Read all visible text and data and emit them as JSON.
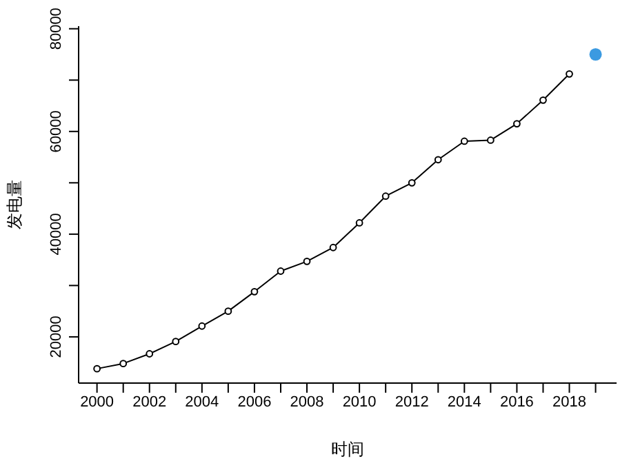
{
  "chart_data": {
    "type": "line",
    "xlabel": "时间",
    "ylabel": "发电量",
    "x": [
      2000,
      2001,
      2002,
      2003,
      2004,
      2005,
      2006,
      2007,
      2008,
      2009,
      2010,
      2011,
      2012,
      2013,
      2014,
      2015,
      2016,
      2017,
      2018
    ],
    "series": [
      {
        "color": "#000000",
        "marker": "circle",
        "values": [
          13800,
          14800,
          16700,
          19100,
          22100,
          25000,
          28800,
          32800,
          34700,
          37400,
          42200,
          47400,
          50000,
          54500,
          58100,
          58300,
          61500,
          66100,
          71200
        ]
      },
      {
        "type": "scatter",
        "color": "#3b9ae1",
        "x": [
          2019
        ],
        "values": [
          75000
        ]
      }
    ],
    "xlim": [
      1999.3,
      2019.8
    ],
    "xticks": [
      2000,
      {
        "value": 2001,
        "label": null
      },
      2002,
      {
        "value": 2003,
        "label": null
      },
      2004,
      {
        "value": 2005,
        "label": null
      },
      2006,
      {
        "value": 2007,
        "label": null
      },
      2008,
      {
        "value": 2009,
        "label": null
      },
      2010,
      {
        "value": 2011,
        "label": null
      },
      2012,
      {
        "value": 2013,
        "label": null
      },
      2014,
      {
        "value": 2015,
        "label": null
      },
      2016,
      {
        "value": 2017,
        "label": null
      },
      2018,
      {
        "value": 2019,
        "label": null
      }
    ],
    "ylim": [
      11000,
      80500
    ],
    "yticks": [
      20000,
      {
        "value": 30000,
        "label": null
      },
      40000,
      {
        "value": 50000,
        "label": null
      },
      60000,
      {
        "value": 70000,
        "label": null
      },
      80000
    ],
    "grid": false,
    "line_style": "solid"
  }
}
